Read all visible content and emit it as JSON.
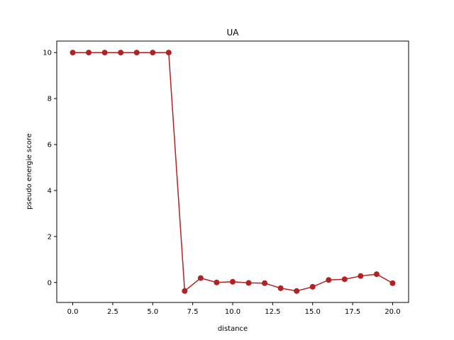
{
  "chart_data": {
    "type": "line",
    "title": "UA",
    "xlabel": "distance",
    "ylabel": "pseudo energie score",
    "xlim": [
      -1.0,
      21.0
    ],
    "ylim": [
      -0.87,
      10.5
    ],
    "x_ticks": [
      0.0,
      2.5,
      5.0,
      7.5,
      10.0,
      12.5,
      15.0,
      17.5,
      20.0
    ],
    "x_tick_labels": [
      "0.0",
      "2.5",
      "5.0",
      "7.5",
      "10.0",
      "12.5",
      "15.0",
      "17.5",
      "20.0"
    ],
    "y_ticks": [
      0,
      2,
      4,
      6,
      8,
      10
    ],
    "y_tick_labels": [
      "0",
      "2",
      "4",
      "6",
      "8",
      "10"
    ],
    "grid": false,
    "series": [
      {
        "color": "#b22222",
        "marker": "circle",
        "x": [
          0,
          1,
          2,
          3,
          4,
          5,
          6,
          7,
          8,
          9,
          10,
          11,
          12,
          13,
          14,
          15,
          16,
          17,
          18,
          19,
          20
        ],
        "y": [
          10.0,
          10.0,
          10.0,
          10.0,
          10.0,
          10.0,
          10.0,
          -0.37,
          0.19,
          0.0,
          0.03,
          -0.02,
          -0.03,
          -0.25,
          -0.37,
          -0.19,
          0.11,
          0.14,
          0.28,
          0.36,
          -0.03
        ]
      }
    ]
  }
}
